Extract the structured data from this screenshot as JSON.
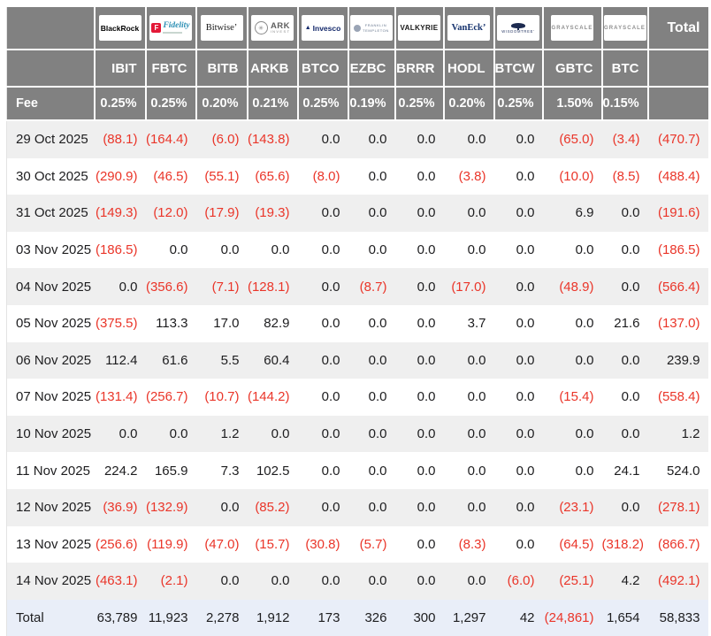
{
  "header": {
    "fee_label": "Fee",
    "total_label": "Total"
  },
  "logos": {
    "blackrock": {
      "text": "BlackRock"
    },
    "fidelity": {
      "f": "F",
      "text": "Fidelity"
    },
    "bitwise": {
      "text": "Bitwise’"
    },
    "ark": {
      "circle": "✳",
      "line1": "ARK",
      "line2": "INVEST"
    },
    "invesco": {
      "tri": "▲",
      "text": "Invesco"
    },
    "franklin": {
      "line1": "FRANKLIN",
      "line2": "TEMPLETON"
    },
    "valkyrie": {
      "text": "VALKYRIE"
    },
    "vaneck": {
      "text": "VanEck’"
    },
    "wisdomtree": {
      "text": "WISDOMTREE’"
    },
    "grayscale": {
      "text": "GRAYSCALE"
    },
    "grayscale2": {
      "text": "GRAYSCALE"
    }
  },
  "chart_data": {
    "type": "table",
    "columns": [
      {
        "issuer": "BlackRock",
        "ticker": "IBIT",
        "fee": "0.25%"
      },
      {
        "issuer": "Fidelity",
        "ticker": "FBTC",
        "fee": "0.25%"
      },
      {
        "issuer": "Bitwise",
        "ticker": "BITB",
        "fee": "0.20%"
      },
      {
        "issuer": "ARK Invest",
        "ticker": "ARKB",
        "fee": "0.21%"
      },
      {
        "issuer": "Invesco",
        "ticker": "BTCO",
        "fee": "0.25%"
      },
      {
        "issuer": "Franklin Templeton",
        "ticker": "EZBC",
        "fee": "0.19%"
      },
      {
        "issuer": "Valkyrie",
        "ticker": "BRRR",
        "fee": "0.25%"
      },
      {
        "issuer": "VanEck",
        "ticker": "HODL",
        "fee": "0.20%"
      },
      {
        "issuer": "WisdomTree",
        "ticker": "BTCW",
        "fee": "0.25%"
      },
      {
        "issuer": "Grayscale",
        "ticker": "GBTC",
        "fee": "1.50%"
      },
      {
        "issuer": "Grayscale",
        "ticker": "BTC",
        "fee": "0.15%"
      }
    ],
    "rows": [
      {
        "date": "29 Oct 2025",
        "values": [
          -88.1,
          -164.4,
          -6.0,
          -143.8,
          0.0,
          0.0,
          0.0,
          0.0,
          0.0,
          -65.0,
          -3.4
        ],
        "total": -470.7
      },
      {
        "date": "30 Oct 2025",
        "values": [
          -290.9,
          -46.5,
          -55.1,
          -65.6,
          -8.0,
          0.0,
          0.0,
          -3.8,
          0.0,
          -10.0,
          -8.5
        ],
        "total": -488.4
      },
      {
        "date": "31 Oct 2025",
        "values": [
          -149.3,
          -12.0,
          -17.9,
          -19.3,
          0.0,
          0.0,
          0.0,
          0.0,
          0.0,
          6.9,
          0.0
        ],
        "total": -191.6
      },
      {
        "date": "03 Nov 2025",
        "values": [
          -186.5,
          0.0,
          0.0,
          0.0,
          0.0,
          0.0,
          0.0,
          0.0,
          0.0,
          0.0,
          0.0
        ],
        "total": -186.5
      },
      {
        "date": "04 Nov 2025",
        "values": [
          0.0,
          -356.6,
          -7.1,
          -128.1,
          0.0,
          -8.7,
          0.0,
          -17.0,
          0.0,
          -48.9,
          0.0
        ],
        "total": -566.4
      },
      {
        "date": "05 Nov 2025",
        "values": [
          -375.5,
          113.3,
          17.0,
          82.9,
          0.0,
          0.0,
          0.0,
          3.7,
          0.0,
          0.0,
          21.6
        ],
        "total": -137.0
      },
      {
        "date": "06 Nov 2025",
        "values": [
          112.4,
          61.6,
          5.5,
          60.4,
          0.0,
          0.0,
          0.0,
          0.0,
          0.0,
          0.0,
          0.0
        ],
        "total": 239.9
      },
      {
        "date": "07 Nov 2025",
        "values": [
          -131.4,
          -256.7,
          -10.7,
          -144.2,
          0.0,
          0.0,
          0.0,
          0.0,
          0.0,
          -15.4,
          0.0
        ],
        "total": -558.4
      },
      {
        "date": "10 Nov 2025",
        "values": [
          0.0,
          0.0,
          1.2,
          0.0,
          0.0,
          0.0,
          0.0,
          0.0,
          0.0,
          0.0,
          0.0
        ],
        "total": 1.2
      },
      {
        "date": "11 Nov 2025",
        "values": [
          224.2,
          165.9,
          7.3,
          102.5,
          0.0,
          0.0,
          0.0,
          0.0,
          0.0,
          0.0,
          24.1
        ],
        "total": 524.0
      },
      {
        "date": "12 Nov 2025",
        "values": [
          -36.9,
          -132.9,
          0.0,
          -85.2,
          0.0,
          0.0,
          0.0,
          0.0,
          0.0,
          -23.1,
          0.0
        ],
        "total": -278.1
      },
      {
        "date": "13 Nov 2025",
        "values": [
          -256.6,
          -119.9,
          -47.0,
          -15.7,
          -30.8,
          -5.7,
          0.0,
          -8.3,
          0.0,
          -64.5,
          -318.2
        ],
        "total": -866.7
      },
      {
        "date": "14 Nov 2025",
        "values": [
          -463.1,
          -2.1,
          0.0,
          0.0,
          0.0,
          0.0,
          0.0,
          0.0,
          -6.0,
          -25.1,
          4.2
        ],
        "total": -492.1
      }
    ],
    "total_row": {
      "label": "Total",
      "values": [
        63789,
        11923,
        2278,
        1912,
        173,
        326,
        300,
        1297,
        42,
        -24861,
        1654
      ],
      "grand_total": 58833
    },
    "colors": {
      "negative": "#ea3529",
      "text": "#1d1d1f",
      "header_bg": "#818181",
      "stripe_bg": "#efefef",
      "total_row_bg": "#e9eef8"
    }
  }
}
